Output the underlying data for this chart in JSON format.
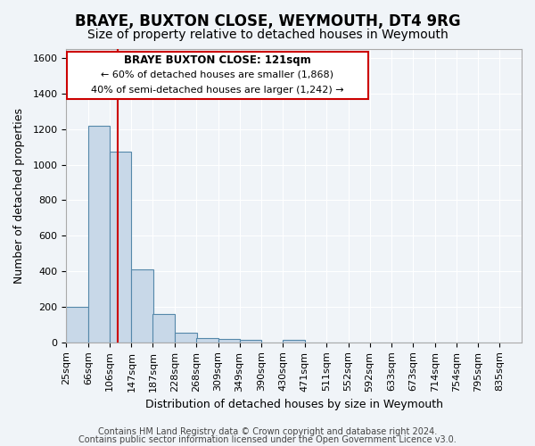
{
  "title": "BRAYE, BUXTON CLOSE, WEYMOUTH, DT4 9RG",
  "subtitle": "Size of property relative to detached houses in Weymouth",
  "xlabel": "Distribution of detached houses by size in Weymouth",
  "ylabel": "Number of detached properties",
  "footer_lines": [
    "Contains HM Land Registry data © Crown copyright and database right 2024.",
    "Contains public sector information licensed under the Open Government Licence v3.0."
  ],
  "bin_labels": [
    "25sqm",
    "66sqm",
    "106sqm",
    "147sqm",
    "187sqm",
    "228sqm",
    "268sqm",
    "309sqm",
    "349sqm",
    "390sqm",
    "430sqm",
    "471sqm",
    "511sqm",
    "552sqm",
    "592sqm",
    "633sqm",
    "673sqm",
    "714sqm",
    "754sqm",
    "795sqm",
    "835sqm"
  ],
  "bin_edges": [
    25,
    66,
    106,
    147,
    187,
    228,
    268,
    309,
    349,
    390,
    430,
    471,
    511,
    552,
    592,
    633,
    673,
    714,
    754,
    795,
    835
  ],
  "bar_heights": [
    200,
    1220,
    1075,
    410,
    160,
    55,
    25,
    18,
    15,
    0,
    15,
    0,
    0,
    0,
    0,
    0,
    0,
    0,
    0,
    0
  ],
  "bar_color": "#c8d8e8",
  "bar_edge_color": "#5588aa",
  "red_line_x": 121,
  "ylim": [
    0,
    1650
  ],
  "yticks": [
    0,
    200,
    400,
    600,
    800,
    1000,
    1200,
    1400,
    1600
  ],
  "annotation_title": "BRAYE BUXTON CLOSE: 121sqm",
  "annotation_line1": "← 60% of detached houses are smaller (1,868)",
  "annotation_line2": "40% of semi-detached houses are larger (1,242) →",
  "annotation_box_color": "#ffffff",
  "annotation_box_edge": "#cc0000",
  "bg_color": "#f0f4f8",
  "plot_bg_color": "#f0f4f8",
  "grid_color": "#ffffff",
  "title_fontsize": 12,
  "subtitle_fontsize": 10,
  "axis_label_fontsize": 9,
  "tick_fontsize": 8,
  "footer_fontsize": 7
}
